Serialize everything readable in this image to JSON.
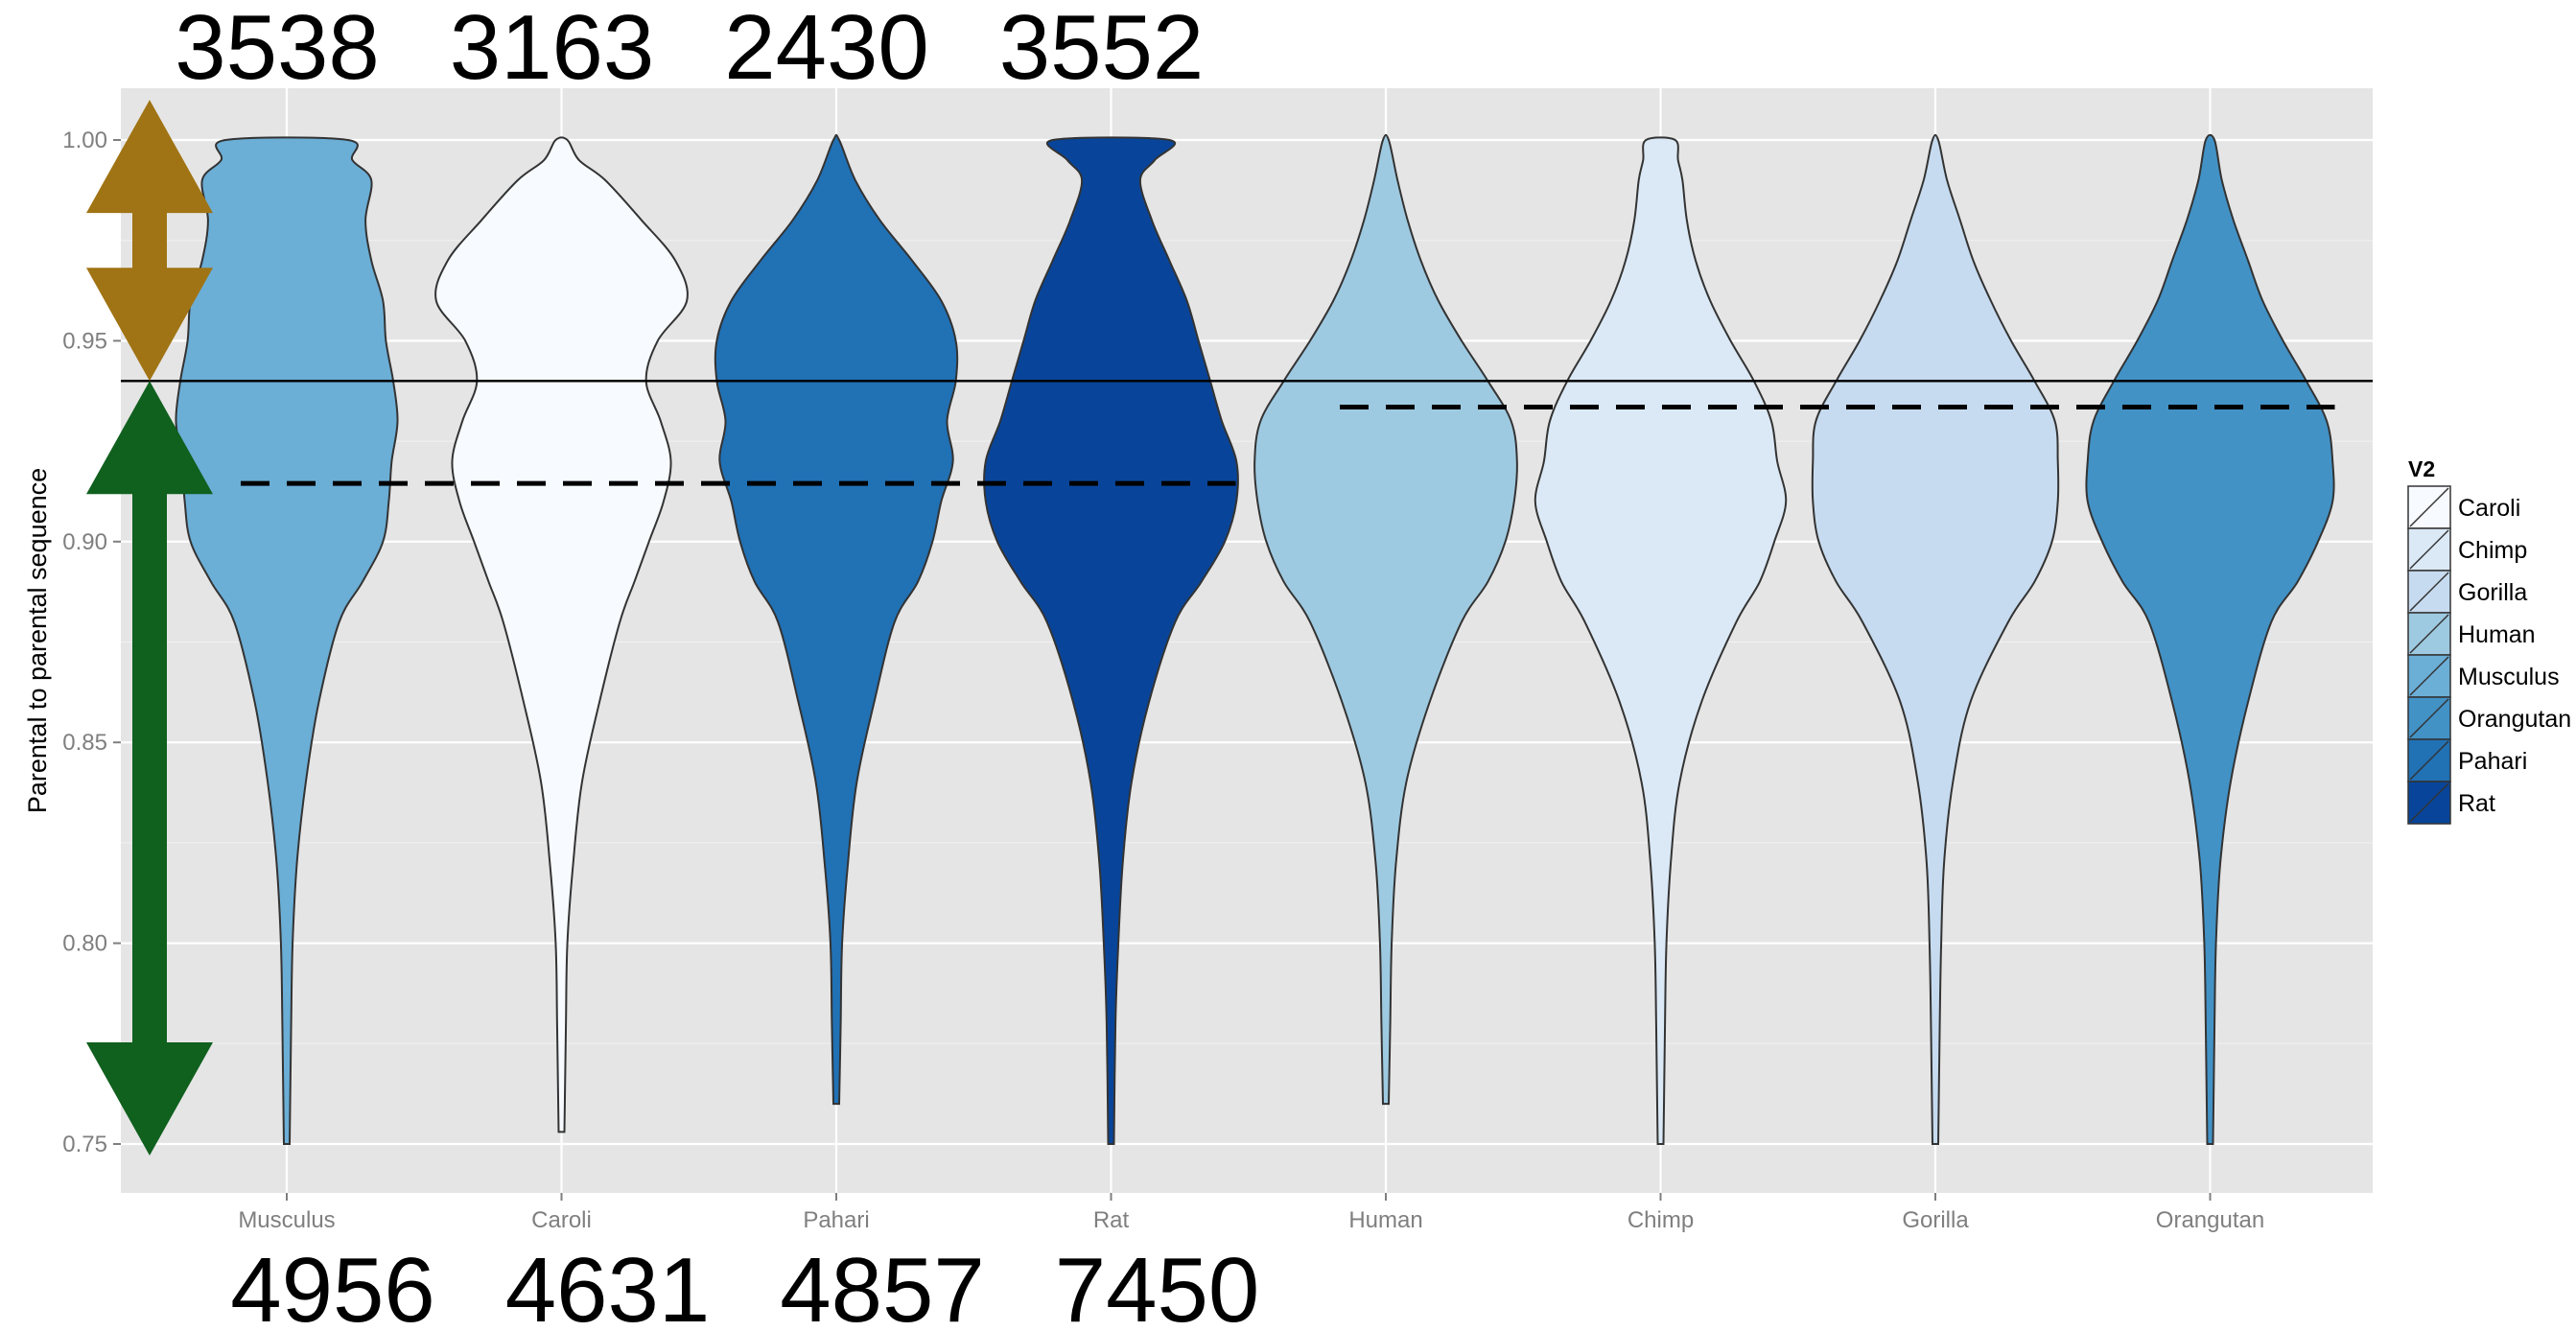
{
  "chart_data": {
    "type": "violin",
    "ylabel": "Parental to parental sequence",
    "xlabel": "",
    "ylim": [
      0.75,
      1.0
    ],
    "yticks": [
      "0.75",
      "0.80",
      "0.85",
      "0.90",
      "0.95",
      "1.00"
    ],
    "ytick_values": [
      0.75,
      0.8,
      0.85,
      0.9,
      0.95,
      1.0
    ],
    "grid": true,
    "categories": [
      "Musculus",
      "Caroli",
      "Pahari",
      "Rat",
      "Human",
      "Chimp",
      "Gorilla",
      "Orangutan"
    ],
    "series": [
      {
        "name": "Musculus",
        "color": "#6baed6",
        "min": 0.75,
        "max": 1.0,
        "profile": [
          [
            0.75,
            0.02
          ],
          [
            0.78,
            0.03
          ],
          [
            0.8,
            0.04
          ],
          [
            0.82,
            0.07
          ],
          [
            0.84,
            0.13
          ],
          [
            0.86,
            0.22
          ],
          [
            0.88,
            0.36
          ],
          [
            0.89,
            0.52
          ],
          [
            0.9,
            0.66
          ],
          [
            0.91,
            0.7
          ],
          [
            0.92,
            0.72
          ],
          [
            0.93,
            0.76
          ],
          [
            0.94,
            0.73
          ],
          [
            0.95,
            0.68
          ],
          [
            0.96,
            0.66
          ],
          [
            0.97,
            0.58
          ],
          [
            0.98,
            0.54
          ],
          [
            0.99,
            0.58
          ],
          [
            0.995,
            0.45
          ],
          [
            1.0,
            0.42
          ]
        ]
      },
      {
        "name": "Caroli",
        "color": "#f7fbff",
        "min": 0.753,
        "max": 1.0,
        "profile": [
          [
            0.753,
            0.02
          ],
          [
            0.78,
            0.03
          ],
          [
            0.8,
            0.04
          ],
          [
            0.82,
            0.08
          ],
          [
            0.84,
            0.14
          ],
          [
            0.86,
            0.26
          ],
          [
            0.88,
            0.4
          ],
          [
            0.89,
            0.5
          ],
          [
            0.9,
            0.6
          ],
          [
            0.91,
            0.7
          ],
          [
            0.92,
            0.75
          ],
          [
            0.93,
            0.68
          ],
          [
            0.94,
            0.58
          ],
          [
            0.95,
            0.66
          ],
          [
            0.96,
            0.86
          ],
          [
            0.97,
            0.78
          ],
          [
            0.98,
            0.55
          ],
          [
            0.99,
            0.3
          ],
          [
            0.995,
            0.12
          ],
          [
            1.0,
            0.04
          ]
        ]
      },
      {
        "name": "Pahari",
        "color": "#2171b5",
        "min": 0.76,
        "max": 1.0,
        "profile": [
          [
            0.76,
            0.02
          ],
          [
            0.78,
            0.03
          ],
          [
            0.8,
            0.04
          ],
          [
            0.82,
            0.08
          ],
          [
            0.84,
            0.14
          ],
          [
            0.86,
            0.26
          ],
          [
            0.88,
            0.4
          ],
          [
            0.89,
            0.56
          ],
          [
            0.9,
            0.66
          ],
          [
            0.91,
            0.72
          ],
          [
            0.92,
            0.8
          ],
          [
            0.93,
            0.76
          ],
          [
            0.94,
            0.82
          ],
          [
            0.95,
            0.82
          ],
          [
            0.96,
            0.72
          ],
          [
            0.97,
            0.52
          ],
          [
            0.98,
            0.3
          ],
          [
            0.99,
            0.13
          ],
          [
            1.0,
            0.02
          ]
        ]
      },
      {
        "name": "Rat",
        "color": "#08459a",
        "min": 0.75,
        "max": 1.0,
        "profile": [
          [
            0.75,
            0.02
          ],
          [
            0.78,
            0.03
          ],
          [
            0.8,
            0.05
          ],
          [
            0.82,
            0.08
          ],
          [
            0.84,
            0.14
          ],
          [
            0.86,
            0.26
          ],
          [
            0.88,
            0.44
          ],
          [
            0.89,
            0.62
          ],
          [
            0.9,
            0.78
          ],
          [
            0.91,
            0.86
          ],
          [
            0.92,
            0.86
          ],
          [
            0.93,
            0.76
          ],
          [
            0.94,
            0.68
          ],
          [
            0.95,
            0.6
          ],
          [
            0.96,
            0.52
          ],
          [
            0.97,
            0.4
          ],
          [
            0.98,
            0.28
          ],
          [
            0.99,
            0.2
          ],
          [
            0.995,
            0.3
          ],
          [
            1.0,
            0.4
          ]
        ]
      },
      {
        "name": "Human",
        "color": "#9ecae1",
        "min": 0.76,
        "max": 1.0,
        "profile": [
          [
            0.76,
            0.02
          ],
          [
            0.78,
            0.03
          ],
          [
            0.8,
            0.04
          ],
          [
            0.82,
            0.07
          ],
          [
            0.84,
            0.14
          ],
          [
            0.86,
            0.3
          ],
          [
            0.88,
            0.52
          ],
          [
            0.89,
            0.7
          ],
          [
            0.9,
            0.82
          ],
          [
            0.91,
            0.88
          ],
          [
            0.92,
            0.9
          ],
          [
            0.93,
            0.86
          ],
          [
            0.94,
            0.7
          ],
          [
            0.95,
            0.52
          ],
          [
            0.96,
            0.36
          ],
          [
            0.97,
            0.24
          ],
          [
            0.98,
            0.15
          ],
          [
            0.99,
            0.08
          ],
          [
            1.0,
            0.02
          ]
        ]
      },
      {
        "name": "Chimp",
        "color": "#dbe9f6",
        "min": 0.75,
        "max": 1.0,
        "profile": [
          [
            0.75,
            0.02
          ],
          [
            0.78,
            0.03
          ],
          [
            0.8,
            0.04
          ],
          [
            0.82,
            0.07
          ],
          [
            0.84,
            0.13
          ],
          [
            0.86,
            0.28
          ],
          [
            0.88,
            0.52
          ],
          [
            0.89,
            0.68
          ],
          [
            0.9,
            0.78
          ],
          [
            0.91,
            0.86
          ],
          [
            0.92,
            0.8
          ],
          [
            0.93,
            0.76
          ],
          [
            0.94,
            0.64
          ],
          [
            0.95,
            0.48
          ],
          [
            0.96,
            0.34
          ],
          [
            0.97,
            0.24
          ],
          [
            0.98,
            0.18
          ],
          [
            0.99,
            0.15
          ],
          [
            0.995,
            0.12
          ],
          [
            1.0,
            0.1
          ]
        ]
      },
      {
        "name": "Gorilla",
        "color": "#c6dbef",
        "min": 0.75,
        "max": 1.0,
        "profile": [
          [
            0.75,
            0.02
          ],
          [
            0.78,
            0.03
          ],
          [
            0.8,
            0.04
          ],
          [
            0.82,
            0.06
          ],
          [
            0.84,
            0.12
          ],
          [
            0.86,
            0.24
          ],
          [
            0.88,
            0.5
          ],
          [
            0.89,
            0.68
          ],
          [
            0.9,
            0.8
          ],
          [
            0.91,
            0.84
          ],
          [
            0.92,
            0.84
          ],
          [
            0.93,
            0.82
          ],
          [
            0.94,
            0.68
          ],
          [
            0.95,
            0.52
          ],
          [
            0.96,
            0.38
          ],
          [
            0.97,
            0.26
          ],
          [
            0.98,
            0.17
          ],
          [
            0.99,
            0.08
          ],
          [
            1.0,
            0.02
          ]
        ]
      },
      {
        "name": "Orangutan",
        "color": "#4292c6",
        "min": 0.75,
        "max": 1.0,
        "profile": [
          [
            0.75,
            0.02
          ],
          [
            0.78,
            0.03
          ],
          [
            0.8,
            0.04
          ],
          [
            0.82,
            0.07
          ],
          [
            0.84,
            0.14
          ],
          [
            0.86,
            0.26
          ],
          [
            0.88,
            0.42
          ],
          [
            0.89,
            0.6
          ],
          [
            0.9,
            0.74
          ],
          [
            0.91,
            0.84
          ],
          [
            0.92,
            0.84
          ],
          [
            0.93,
            0.8
          ],
          [
            0.94,
            0.66
          ],
          [
            0.95,
            0.5
          ],
          [
            0.96,
            0.36
          ],
          [
            0.97,
            0.26
          ],
          [
            0.98,
            0.16
          ],
          [
            0.99,
            0.08
          ],
          [
            1.0,
            0.03
          ]
        ]
      }
    ],
    "reference_lines": [
      {
        "style": "solid",
        "y": 0.94,
        "from": "Musculus",
        "to": "Orangutan",
        "span": "full"
      },
      {
        "style": "dashed",
        "y": 0.9145,
        "from": "Musculus",
        "to": "Rat"
      },
      {
        "style": "dashed",
        "y": 0.9335,
        "from": "Human",
        "to": "Orangutan"
      }
    ],
    "legend": {
      "title": "V2",
      "position": "right",
      "entries": [
        {
          "label": "Caroli",
          "color": "#f7fbff"
        },
        {
          "label": "Chimp",
          "color": "#dbe9f6"
        },
        {
          "label": "Gorilla",
          "color": "#c6dbef"
        },
        {
          "label": "Human",
          "color": "#9ecae1"
        },
        {
          "label": "Musculus",
          "color": "#6baed6"
        },
        {
          "label": "Orangutan",
          "color": "#4292c6"
        },
        {
          "label": "Pahari",
          "color": "#2171b5"
        },
        {
          "label": "Rat",
          "color": "#08459a"
        }
      ]
    },
    "annotations": {
      "top_counts": [
        "3538",
        "3163",
        "2430",
        "3552"
      ],
      "bottom_counts": [
        "4956",
        "4631",
        "4857",
        "7450"
      ],
      "arrows": [
        {
          "color": "#a07414",
          "direction": "double",
          "y_from": 0.94,
          "y_to": 1.01
        },
        {
          "color": "#10601e",
          "direction": "double",
          "y_from": 0.75,
          "y_to": 0.94
        }
      ]
    }
  }
}
